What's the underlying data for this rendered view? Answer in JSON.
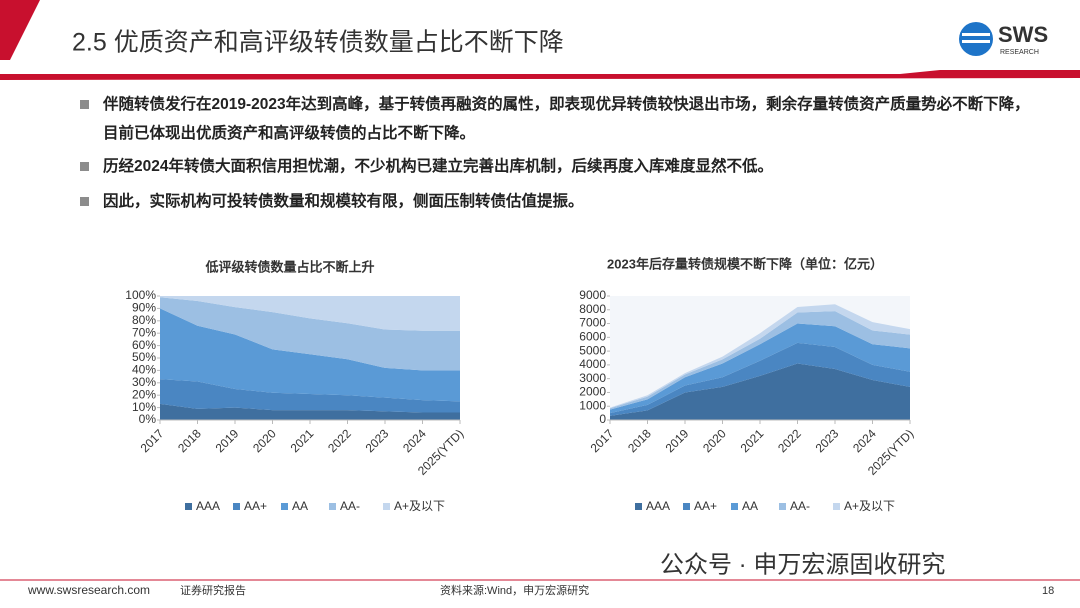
{
  "header": {
    "title": "2.5 优质资产和高评级转债数量占比不断下降",
    "logo": "SWS",
    "logo_sub": "RESEARCH"
  },
  "bullets": [
    "伴随转债发行在2019-2023年达到高峰，基于转债再融资的属性，即表现优异转债较快退出市场，剩余存量转债资产质量势必不断下降，目前已体现出优质资产和高评级转债的占比不断下降。",
    "历经2024年转债大面积信用担忧潮，不少机构已建立完善出库机制，后续再度入库难度显然不低。",
    "因此，实际机构可投转债数量和规模较有限，侧面压制转债估值提振。"
  ],
  "chart_data": [
    {
      "type": "stacked_area",
      "title": "低评级转债数量占比不断上升",
      "categories": [
        "2017",
        "2018",
        "2019",
        "2020",
        "2021",
        "2022",
        "2023",
        "2024",
        "2025(YTD)"
      ],
      "series": [
        {
          "name": "AAA",
          "color": "#3f6f9f",
          "values": [
            13,
            9,
            10,
            8,
            8,
            8,
            7,
            6,
            6
          ]
        },
        {
          "name": "AA+",
          "color": "#4a86c2",
          "values": [
            20,
            22,
            15,
            14,
            13,
            12,
            11,
            10,
            9
          ]
        },
        {
          "name": "AA",
          "color": "#5a9ad6",
          "values": [
            57,
            45,
            44,
            35,
            32,
            29,
            24,
            24,
            25
          ]
        },
        {
          "name": "AA-",
          "color": "#9cbfe3",
          "values": [
            9,
            20,
            22,
            30,
            29,
            29,
            31,
            32,
            32
          ]
        },
        {
          "name": "A+及以下",
          "color": "#c4d7ee",
          "values": [
            1,
            4,
            9,
            13,
            18,
            22,
            27,
            28,
            28
          ]
        }
      ],
      "ylim": [
        0,
        100
      ],
      "yticks": [
        {
          "value": 0,
          "label": "0%"
        },
        {
          "value": 10,
          "label": "10%"
        },
        {
          "value": 20,
          "label": "20%"
        },
        {
          "value": 30,
          "label": "30%"
        },
        {
          "value": 40,
          "label": "40%"
        },
        {
          "value": 50,
          "label": "50%"
        },
        {
          "value": 60,
          "label": "60%"
        },
        {
          "value": 70,
          "label": "70%"
        },
        {
          "value": 80,
          "label": "80%"
        },
        {
          "value": 90,
          "label": "90%"
        },
        {
          "value": 100,
          "label": "100%"
        }
      ]
    },
    {
      "type": "stacked_area",
      "title": "2023年后存量转债规模不断下降（单位：亿元）",
      "categories": [
        "2017",
        "2018",
        "2019",
        "2020",
        "2021",
        "2022",
        "2023",
        "2024",
        "2025(YTD)"
      ],
      "series": [
        {
          "name": "AAA",
          "color": "#3f6f9f",
          "values": [
            300,
            700,
            2000,
            2400,
            3200,
            4100,
            3700,
            2900,
            2400
          ]
        },
        {
          "name": "AA+",
          "color": "#4a86c2",
          "values": [
            200,
            400,
            500,
            700,
            1100,
            1500,
            1600,
            1100,
            1100
          ]
        },
        {
          "name": "AA",
          "color": "#5a9ad6",
          "values": [
            250,
            400,
            600,
            1000,
            1200,
            1400,
            1500,
            1500,
            1700
          ]
        },
        {
          "name": "AA-",
          "color": "#9cbfe3",
          "values": [
            100,
            200,
            200,
            300,
            400,
            800,
            1100,
            1000,
            1000
          ]
        },
        {
          "name": "A+及以下",
          "color": "#c4d7ee",
          "values": [
            50,
            100,
            100,
            200,
            400,
            400,
            500,
            600,
            400
          ]
        }
      ],
      "ylim": [
        0,
        9000
      ],
      "yticks": [
        0,
        1000,
        2000,
        3000,
        4000,
        5000,
        6000,
        7000,
        8000,
        9000
      ]
    }
  ],
  "watermark": "公众号 · 申万宏源固收研究",
  "footer": {
    "site": "www.swsresearch.com",
    "report": "证券研究报告",
    "source": "资料来源:Wind，申万宏源研究",
    "page": "18"
  }
}
